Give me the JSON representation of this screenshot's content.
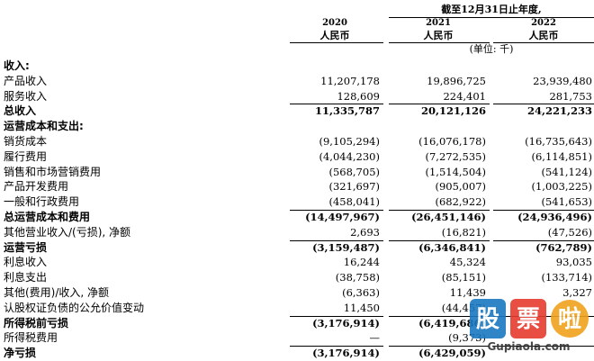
{
  "header": {
    "title": "截至12月31日止年度,",
    "years": [
      "2020",
      "2021",
      "2022"
    ],
    "currency": [
      "人民币",
      "人民币",
      "人民币"
    ],
    "unit": "(单位: 千)"
  },
  "rows": [
    {
      "label": "收入:",
      "bold": true,
      "values": [
        "",
        "",
        ""
      ]
    },
    {
      "label": "产品收入",
      "bold": false,
      "values": [
        "11,207,178",
        "19,896,725",
        "23,939,480"
      ]
    },
    {
      "label": "服务收入",
      "bold": false,
      "values": [
        "128,609",
        "224,401",
        "281,753"
      ]
    },
    {
      "label": "总收入",
      "bold": true,
      "values": [
        "11,335,787",
        "20,121,126",
        "24,221,233"
      ],
      "rule": true
    },
    {
      "label": "运营成本和支出:",
      "bold": true,
      "values": [
        "",
        "",
        ""
      ]
    },
    {
      "label": "销货成本",
      "bold": false,
      "values": [
        "(9,105,294)",
        "(16,076,178)",
        "(16,735,643)"
      ]
    },
    {
      "label": "履行费用",
      "bold": false,
      "values": [
        "(4,044,230)",
        "(7,272,535)",
        "(6,114,851)"
      ]
    },
    {
      "label": "销售和市场营销费用",
      "bold": false,
      "values": [
        "(568,705)",
        "(1,514,504)",
        "(541,124)"
      ]
    },
    {
      "label": "产品开发费用",
      "bold": false,
      "values": [
        "(321,697)",
        "(905,007)",
        "(1,003,225)"
      ]
    },
    {
      "label": "一般和行政费用",
      "bold": false,
      "values": [
        "(458,041)",
        "(682,922)",
        "(541,653)"
      ]
    },
    {
      "label": "总运营成本和费用",
      "bold": true,
      "values": [
        "(14,497,967)",
        "(26,451,146)",
        "(24,936,496)"
      ],
      "rule": true
    },
    {
      "label": "其他营业收入/(亏损), 净额",
      "bold": false,
      "values": [
        "2,693",
        "(16,821)",
        "(47,526)"
      ]
    },
    {
      "label": "运营亏损",
      "bold": true,
      "values": [
        "(3,159,487)",
        "(6,346,841)",
        "(762,789)"
      ],
      "rule": true
    },
    {
      "label": "利息收入",
      "bold": false,
      "values": [
        "16,244",
        "45,324",
        "93,035"
      ]
    },
    {
      "label": "利息支出",
      "bold": false,
      "values": [
        "(38,758)",
        "(85,151)",
        "(133,714)"
      ]
    },
    {
      "label": "其他(费用)/收入, 净额",
      "bold": false,
      "values": [
        "(6,363)",
        "11,439",
        "3,327"
      ]
    },
    {
      "label": "认股权证负债的公允价值变动",
      "bold": false,
      "values": [
        "11,450",
        "(44,457)",
        ""
      ]
    },
    {
      "label": "所得税前亏损",
      "bold": true,
      "values": [
        "(3,176,914)",
        "(6,419,686)",
        ""
      ],
      "rule": true
    },
    {
      "label": "所得税费用",
      "bold": false,
      "values": [
        "—",
        "(9,373)",
        ""
      ]
    },
    {
      "label": "净亏损",
      "bold": true,
      "values": [
        "(3,176,914)",
        "(6,429,059)",
        ""
      ],
      "rule": true
    }
  ],
  "watermark": {
    "chars": [
      "股",
      "票",
      "啦"
    ],
    "domain": "Gupiaola.com",
    "colors": {
      "badge1": "#1a78c2",
      "badge2": "#e63b2e",
      "badge3": "#f0a21c"
    }
  }
}
